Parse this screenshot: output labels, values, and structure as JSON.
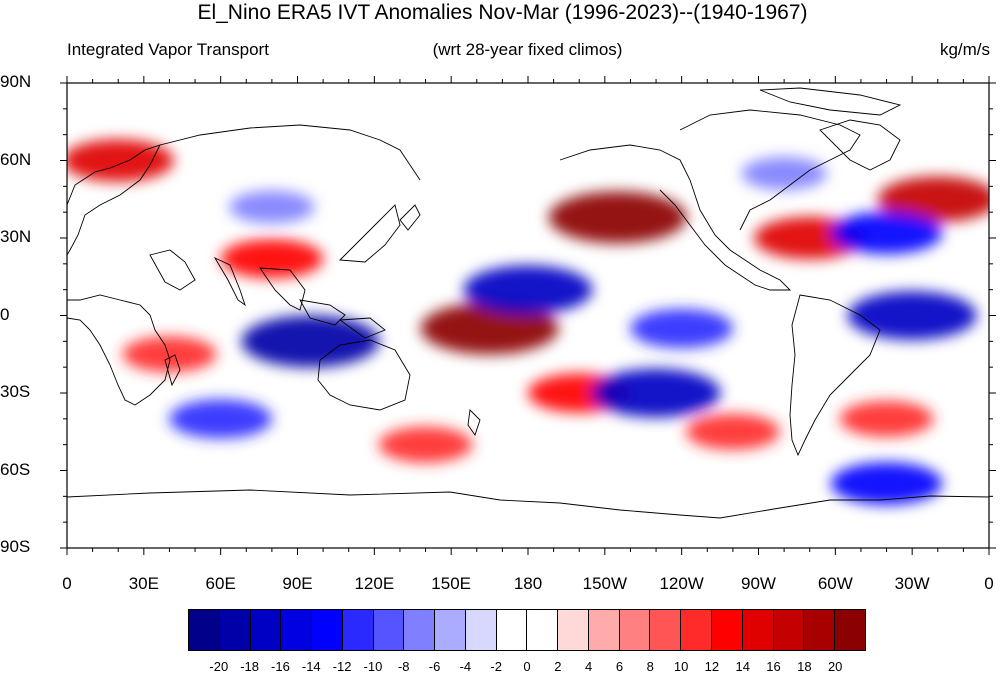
{
  "title": "El_Nino ERA5 IVT Anomalies Nov-Mar (1996-2023)--(1940-1967)",
  "subtitle_left": "Integrated Vapor Transport",
  "subtitle_center": "(wrt 28-year fixed climos)",
  "units": "kg/m/s",
  "lat_labels": [
    "90N",
    "60N",
    "30N",
    "0",
    "30S",
    "60S",
    "90S"
  ],
  "lon_labels": [
    "0",
    "30E",
    "60E",
    "90E",
    "120E",
    "150E",
    "180",
    "150W",
    "120W",
    "90W",
    "60W",
    "30W",
    "0"
  ],
  "colorbar": {
    "labels": [
      "-20",
      "-18",
      "-16",
      "-14",
      "-12",
      "-10",
      "-8",
      "-6",
      "-4",
      "-2",
      "0",
      "2",
      "4",
      "6",
      "8",
      "10",
      "12",
      "14",
      "16",
      "18",
      "20"
    ],
    "colors": [
      "#00008b",
      "#0000a8",
      "#0000c4",
      "#0000e0",
      "#0000ff",
      "#2a2aff",
      "#5555ff",
      "#8080ff",
      "#ababff",
      "#d8d8ff",
      "#ffffff",
      "#ffffff",
      "#ffd8d8",
      "#ffabab",
      "#ff8080",
      "#ff5555",
      "#ff2a2a",
      "#ff0000",
      "#e00000",
      "#c40000",
      "#a80000",
      "#8b0000"
    ]
  },
  "chart_data": {
    "type": "heatmap",
    "variable": "Integrated Vapor Transport anomaly",
    "units": "kg/m/s",
    "lon_range": [
      0,
      360
    ],
    "lat_range": [
      -90,
      90
    ],
    "levels": [
      -20,
      -18,
      -16,
      -14,
      -12,
      -10,
      -8,
      -6,
      -4,
      -2,
      0,
      2,
      4,
      6,
      8,
      10,
      12,
      14,
      16,
      18,
      20
    ],
    "features": [
      {
        "lon": 165,
        "lat": -5,
        "value": 20
      },
      {
        "lon": 215,
        "lat": 38,
        "value": 20
      },
      {
        "lon": 340,
        "lat": 45,
        "value": 16
      },
      {
        "lon": 20,
        "lat": 60,
        "value": 14
      },
      {
        "lon": 290,
        "lat": 30,
        "value": 14
      },
      {
        "lon": 80,
        "lat": 22,
        "value": 12
      },
      {
        "lon": 200,
        "lat": -30,
        "value": 12
      },
      {
        "lon": 40,
        "lat": -15,
        "value": 10
      },
      {
        "lon": 260,
        "lat": -45,
        "value": 10
      },
      {
        "lon": 320,
        "lat": -40,
        "value": 10
      },
      {
        "lon": 140,
        "lat": -50,
        "value": 10
      },
      {
        "lon": 95,
        "lat": -10,
        "value": -20
      },
      {
        "lon": 180,
        "lat": 10,
        "value": -18
      },
      {
        "lon": 230,
        "lat": -30,
        "value": -18
      },
      {
        "lon": 330,
        "lat": 0,
        "value": -18
      },
      {
        "lon": 320,
        "lat": 32,
        "value": -14
      },
      {
        "lon": 320,
        "lat": -65,
        "value": -14
      },
      {
        "lon": 60,
        "lat": -40,
        "value": -12
      },
      {
        "lon": 240,
        "lat": -5,
        "value": -12
      },
      {
        "lon": 80,
        "lat": 42,
        "value": -8
      },
      {
        "lon": 280,
        "lat": 55,
        "value": -8
      }
    ]
  }
}
